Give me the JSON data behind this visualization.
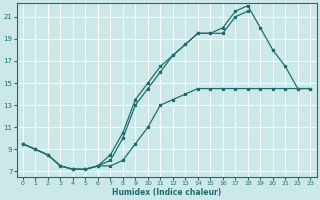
{
  "xlabel": "Humidex (Indice chaleur)",
  "bg_color": "#cce8e8",
  "grid_color": "#ffffff",
  "line_color": "#1a7070",
  "xlim": [
    -0.5,
    23.5
  ],
  "ylim": [
    6.5,
    22.2
  ],
  "xticks": [
    0,
    1,
    2,
    3,
    4,
    5,
    6,
    7,
    8,
    9,
    10,
    11,
    12,
    13,
    14,
    15,
    16,
    17,
    18,
    19,
    20,
    21,
    22,
    23
  ],
  "yticks": [
    7,
    9,
    11,
    13,
    15,
    17,
    19,
    21
  ],
  "upper_x": [
    0,
    1,
    2,
    3,
    4,
    5,
    6,
    7,
    8,
    9,
    10,
    11,
    12,
    13,
    14,
    15,
    16,
    17,
    18,
    19,
    20,
    21,
    22,
    23
  ],
  "upper_y": [
    9.5,
    9.0,
    8.5,
    7.5,
    7.2,
    7.2,
    7.5,
    8.5,
    10.5,
    13.5,
    15.0,
    16.5,
    17.5,
    18.5,
    19.5,
    19.5,
    20.0,
    21.5,
    22.0,
    20.0,
    18.0,
    16.5,
    14.5,
    14.5
  ],
  "lower_x": [
    0,
    1,
    2,
    3,
    4,
    5,
    6,
    7,
    8,
    9,
    10,
    11,
    12,
    13,
    14,
    15,
    16,
    17,
    18,
    19,
    20,
    21,
    22,
    23
  ],
  "lower_y": [
    9.5,
    9.0,
    8.5,
    7.5,
    7.2,
    7.2,
    7.5,
    7.5,
    8.0,
    9.5,
    11.0,
    13.0,
    13.5,
    14.0,
    14.5,
    14.5,
    14.5,
    14.5,
    14.5,
    14.5,
    14.5,
    14.5,
    14.5,
    14.5
  ],
  "mid_x": [
    0,
    1,
    2,
    3,
    4,
    5,
    6,
    7,
    8,
    9,
    10,
    11,
    12,
    13,
    14,
    15,
    16,
    17,
    18
  ],
  "mid_y": [
    9.5,
    9.0,
    8.5,
    7.5,
    7.2,
    7.2,
    7.5,
    8.0,
    10.0,
    13.0,
    14.5,
    16.0,
    17.5,
    18.5,
    19.5,
    19.5,
    19.5,
    21.0,
    21.5
  ]
}
